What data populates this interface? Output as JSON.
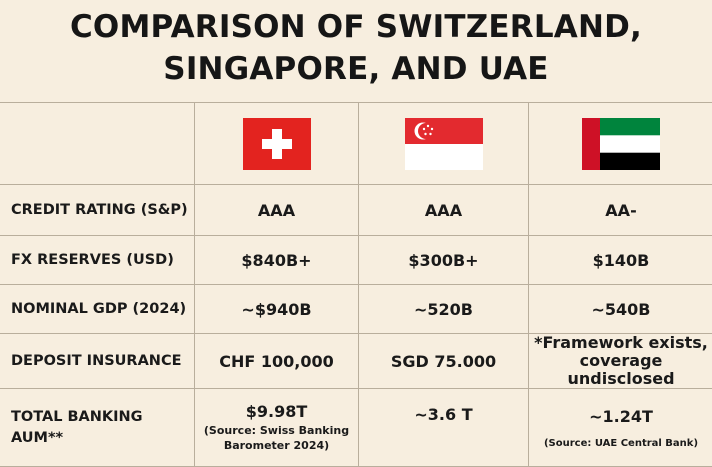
{
  "title": {
    "line1": "COMPARISON OF SWITZERLAND,",
    "line2": "SINGAPORE, AND UAE"
  },
  "flags": [
    {
      "country": "Switzerland",
      "icon": "switzerland-flag-icon",
      "colors": [
        "#e3231f",
        "#ffffff"
      ]
    },
    {
      "country": "Singapore",
      "icon": "singapore-flag-icon",
      "colors": [
        "#e32a2f",
        "#ffffff"
      ]
    },
    {
      "country": "UAE",
      "icon": "uae-flag-icon",
      "colors": [
        "#ce1126",
        "#00843d",
        "#ffffff",
        "#000000"
      ]
    }
  ],
  "rows": [
    {
      "label": "CREDIT RATING (S&P)",
      "values": [
        "AAA",
        "AAA",
        "AA-"
      ]
    },
    {
      "label": "FX RESERVES (USD)",
      "values": [
        "$840B+",
        "$300B+",
        "$140B"
      ]
    },
    {
      "label": "NOMINAL GDP (2024)",
      "values": [
        "~$940B",
        "~520B",
        "~540B"
      ]
    },
    {
      "label": "DEPOSIT INSURANCE",
      "values": [
        "CHF 100,000",
        "SGD 75.000",
        "*Framework exists, coverage undisclosed"
      ]
    },
    {
      "label": "TOTAL BANKING AUM**",
      "values": [
        "$9.98T",
        "~3.6 T",
        "~1.24T"
      ],
      "notes": [
        "(Source: Swiss Banking Barometer 2024)",
        "",
        "(Source: UAE Central Bank)"
      ]
    }
  ]
}
